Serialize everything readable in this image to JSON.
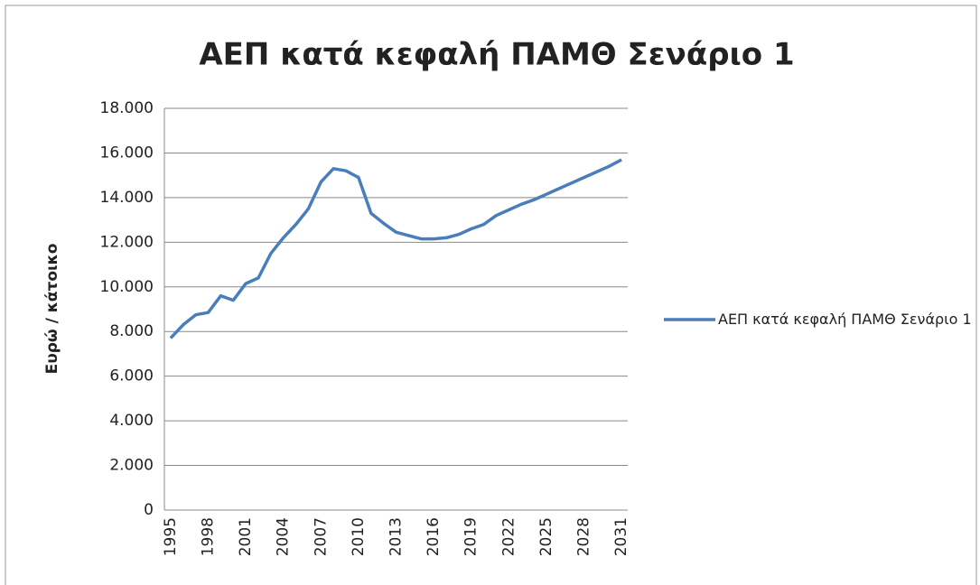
{
  "chart_data": {
    "type": "line",
    "title": "ΑΕΠ κατά κεφαλή ΠΑΜΘ Σενάριο 1",
    "y_label": "Ευρώ / κάτοικο",
    "categories": [
      "1995",
      null,
      null,
      "1998",
      null,
      null,
      "2001",
      null,
      null,
      "2004",
      null,
      null,
      "2007",
      null,
      null,
      "2010",
      null,
      null,
      "2013",
      null,
      null,
      "2016",
      null,
      null,
      "2019",
      null,
      null,
      "2022",
      null,
      null,
      "2025",
      null,
      null,
      "2028",
      null,
      null,
      "2031"
    ],
    "series": [
      {
        "name": "ΑΕΠ κατά κεφαλή ΠΑΜΘ Σενάριο 1",
        "color": "#4a7ebb",
        "values": [
          7700,
          8300,
          8750,
          8850,
          9600,
          9400,
          10150,
          10400,
          11500,
          12200,
          12800,
          13500,
          14700,
          15300,
          15200,
          14900,
          13300,
          12850,
          12450,
          12300,
          12150,
          12150,
          12200,
          12350,
          12600,
          12800,
          13200,
          13450,
          13700,
          13900,
          14150,
          14400,
          14650,
          14900,
          15150,
          15400,
          15700
        ]
      }
    ],
    "ylim": [
      0,
      18000
    ],
    "yticks": [
      0,
      {
        "value": 2000,
        "label": "2.000"
      },
      {
        "value": 4000,
        "label": "4.000"
      },
      {
        "value": 6000,
        "label": "6.000"
      },
      {
        "value": 8000,
        "label": "8.000"
      },
      {
        "value": 10000,
        "label": "10.000"
      },
      {
        "value": 12000,
        "label": "12.000"
      },
      {
        "value": 14000,
        "label": "14.000"
      },
      {
        "value": 16000,
        "label": "16.000"
      },
      {
        "value": 18000,
        "label": "18.000"
      }
    ],
    "grid": true,
    "legend": "right"
  }
}
